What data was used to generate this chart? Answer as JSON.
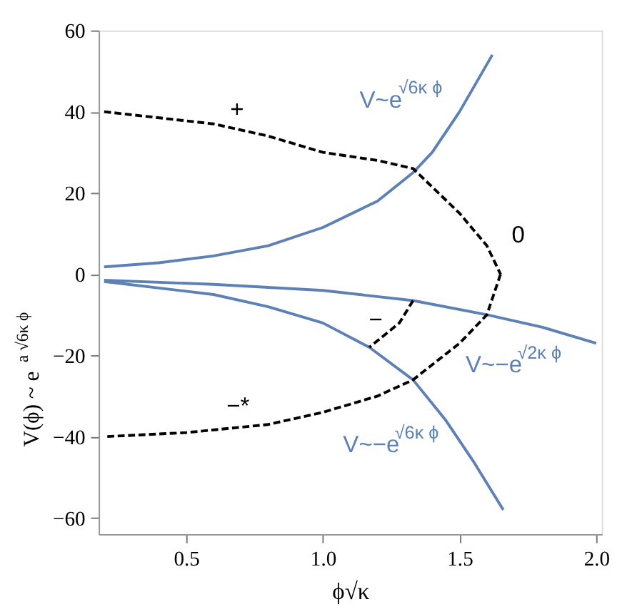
{
  "chart_data": {
    "type": "line",
    "xlabel": "ϕ√κ",
    "ylabel": "V(ϕ) ~ e$^{a √6κ ϕ}$",
    "xlim": [
      0.18,
      2.02
    ],
    "ylim": [
      -64,
      60
    ],
    "xticks": [
      {
        "value": 0.5,
        "label": "0.5"
      },
      {
        "value": 1.0,
        "label": "1.0"
      },
      {
        "value": 1.5,
        "label": "1.5"
      },
      {
        "value": 2.0,
        "label": "2.0"
      }
    ],
    "yticks": [
      {
        "value": -60,
        "label": "−60"
      },
      {
        "value": -40,
        "label": "−40"
      },
      {
        "value": -20,
        "label": "−20"
      },
      0,
      20,
      40,
      60
    ],
    "grid": false,
    "marker": "none",
    "series": [
      {
        "name": "V~e$^{√6κ ϕ}$",
        "color": "#5e81b5",
        "line_style": "solid",
        "x": [
          0.2,
          0.4,
          0.6,
          0.8,
          1.0,
          1.2,
          1.33,
          1.4,
          1.5,
          1.62
        ],
        "values": [
          1.8,
          2.8,
          4.5,
          7,
          11.5,
          18,
          25,
          30,
          40,
          54
        ]
      },
      {
        "name": "V~−e$^{√2κ ϕ}$",
        "color": "#5e81b5",
        "line_style": "solid",
        "x": [
          0.2,
          0.6,
          1.0,
          1.33,
          1.6,
          1.8,
          2.0
        ],
        "values": [
          -1.5,
          -2.5,
          -4,
          -6.5,
          -10,
          -13,
          -17
        ]
      },
      {
        "name": "V~−e$^{√6κ ϕ}$",
        "color": "#5e81b5",
        "line_style": "solid",
        "x": [
          0.2,
          0.6,
          0.8,
          1.0,
          1.17,
          1.33,
          1.45,
          1.55,
          1.66
        ],
        "values": [
          -1.8,
          -5,
          -8,
          -12,
          -18,
          -26,
          -36,
          -46,
          -58
        ]
      },
      {
        "name": "+",
        "color": "#000000",
        "line_style": "dashed",
        "x": [
          0.2,
          0.6,
          0.8,
          1.0,
          1.2,
          1.33,
          1.5,
          1.6,
          1.65
        ],
        "values": [
          40,
          37,
          34,
          30,
          28,
          26,
          15,
          7,
          0
        ]
      },
      {
        "name": "−*",
        "color": "#000000",
        "line_style": "dashed",
        "x": [
          1.65,
          1.6,
          1.5,
          1.33,
          1.2,
          1.0,
          0.8,
          0.5,
          0.2
        ],
        "values": [
          0,
          -10,
          -17,
          -26,
          -30,
          -34,
          -37,
          -39,
          -40
        ]
      },
      {
        "name": "−",
        "color": "#000000",
        "line_style": "dashed",
        "x": [
          1.33,
          1.28,
          1.17
        ],
        "values": [
          -6.5,
          -12,
          -18
        ]
      }
    ],
    "annotations": [
      {
        "text": "0",
        "x": 1.65,
        "y": 0
      }
    ]
  }
}
